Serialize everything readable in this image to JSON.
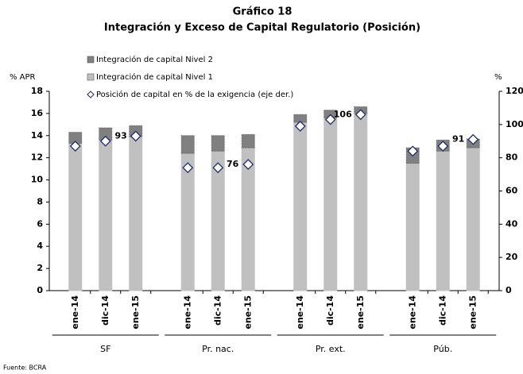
{
  "chart_data": {
    "type": "bar",
    "stacked": true,
    "title": "Gráfico 18",
    "subtitle": "Integración y Exceso de Capital Regulatorio (Posición)",
    "ylabel": "% APR",
    "y2label": "%",
    "source": "Fuente: BCRA",
    "groups": [
      "SF",
      "Pr. nac.",
      "Pr. ext.",
      "Púb."
    ],
    "categories": [
      "ene-14",
      "dic-14",
      "ene-15",
      "ene-14",
      "dic-14",
      "ene-15",
      "ene-14",
      "dic-14",
      "ene-15",
      "ene-14",
      "dic-14",
      "ene-15"
    ],
    "series": [
      {
        "name": "Integración de capital Nivel 1",
        "color": "#c0c0c0",
        "values": [
          13.3,
          13.6,
          13.9,
          12.4,
          12.6,
          12.9,
          15.2,
          15.6,
          16.0,
          11.5,
          12.6,
          12.9
        ]
      },
      {
        "name": "Integración de capital Nivel 2",
        "color": "#808080",
        "values": [
          1.0,
          1.1,
          1.0,
          1.6,
          1.4,
          1.2,
          0.7,
          0.7,
          0.6,
          1.4,
          1.0,
          0.8
        ]
      },
      {
        "name": "Posición de capital en % de la exigencia (eje der.)",
        "color": "#1f2a6b",
        "axis": "y2",
        "marker": "diamond",
        "values": [
          87,
          90,
          93,
          74,
          74,
          76,
          99,
          103,
          106,
          84,
          87,
          91
        ],
        "show_value": [
          false,
          false,
          true,
          false,
          false,
          true,
          false,
          false,
          true,
          false,
          false,
          true
        ]
      }
    ],
    "legend_order": [
      1,
      0,
      2
    ],
    "ylim": [
      0,
      18
    ],
    "yticks": [
      0,
      2,
      4,
      6,
      8,
      10,
      12,
      14,
      16,
      18
    ],
    "y2lim": [
      0,
      120
    ],
    "y2ticks": [
      0,
      20,
      40,
      60,
      80,
      100,
      120
    ]
  }
}
